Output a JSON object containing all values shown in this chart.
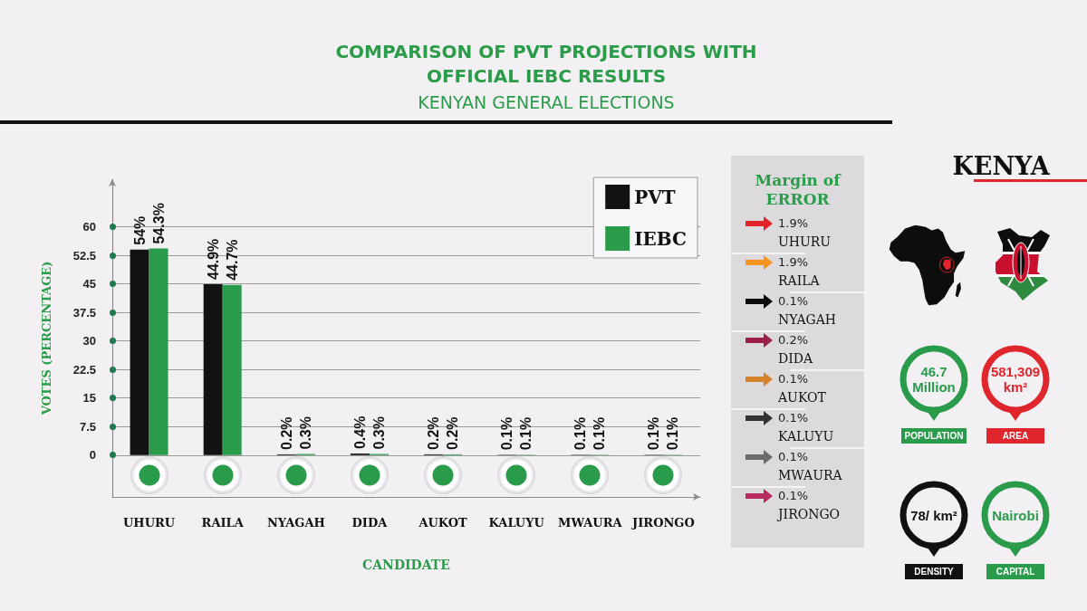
{
  "chart_data": [
    {
      "type": "bar",
      "title": "COMPARISON OF PVT PROJECTIONS WITH OFFICIAL IEBC RESULTS",
      "subtitle": "KENYAN GENERAL ELECTIONS",
      "xlabel": "CANDIDATE",
      "ylabel": "VOTES (PERCENTAGE)",
      "categories": [
        "UHURU",
        "RAILA",
        "NYAGAH",
        "DIDA",
        "AUKOT",
        "KALUYU",
        "MWAURA",
        "JIRONGO"
      ],
      "series": [
        {
          "name": "PVT",
          "color": "#121212",
          "values": [
            54,
            44.9,
            0.2,
            0.4,
            0.2,
            0.1,
            0.1,
            0.1
          ],
          "value_labels": [
            "54%",
            "44.9%",
            "0.2%",
            "0.4%",
            "0.2%",
            "0.1%",
            "0.1%",
            "0.1%"
          ]
        },
        {
          "name": "IEBC",
          "color": "#2a9b4b",
          "values": [
            54.3,
            44.7,
            0.3,
            0.3,
            0.2,
            0.1,
            0.1,
            0.1
          ],
          "value_labels": [
            "54.3%",
            "44.7%",
            "0.3%",
            "0.3%",
            "0.2%",
            "0.1%",
            "0.1%",
            "0.1%"
          ]
        }
      ],
      "ylim": [
        -11,
        72.5
      ],
      "yticks": [
        0,
        7.5,
        15,
        22.5,
        30,
        37.5,
        45,
        52.5,
        60
      ],
      "grid": "y",
      "legend": "top right"
    },
    {
      "type": "other",
      "title": "Margin of ERROR",
      "categories": [
        "UHURU",
        "RAILA",
        "NYAGAH",
        "DIDA",
        "AUKOT",
        "KALUYU",
        "MWAURA",
        "JIRONGO"
      ],
      "value_labels": [
        "1.9%",
        "1.9%",
        "0.1%",
        "0.2%",
        "0.1%",
        "0.1%",
        "0.1%",
        "0.1%"
      ]
    },
    {
      "type": "other",
      "title": "KENYA",
      "categories": [
        "POPULATION",
        "AREA",
        "DENSITY",
        "CAPITAL"
      ],
      "value_labels": [
        "46.7 Million",
        "581,309 km²",
        "78/ km²",
        "Nairobi"
      ],
      "colors": [
        "#2a9b4b",
        "#e0262d",
        "#111111",
        "#2a9b4b"
      ]
    }
  ]
}
